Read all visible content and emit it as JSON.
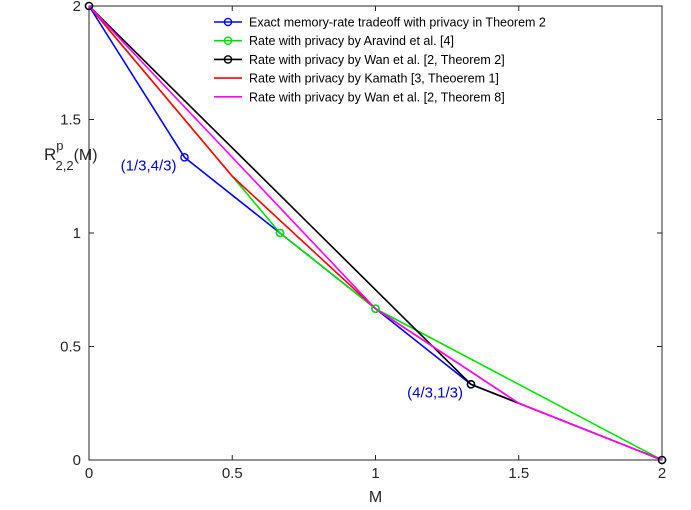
{
  "chart_data": {
    "type": "line",
    "xlabel": "M",
    "ylabel": {
      "main": "R",
      "superscript": "p",
      "subscript": "2,2",
      "suffix": "(M)"
    },
    "xlim": [
      0,
      2
    ],
    "ylim": [
      0,
      2
    ],
    "x_ticks": [
      {
        "value": 0,
        "label": "0"
      },
      {
        "value": 0.5,
        "label": "0.5"
      },
      {
        "value": 1,
        "label": "1"
      },
      {
        "value": 1.5,
        "label": "1.5"
      },
      {
        "value": 2,
        "label": "2"
      }
    ],
    "y_ticks": [
      {
        "value": 0,
        "label": "0"
      },
      {
        "value": 0.5,
        "label": "0.5"
      },
      {
        "value": 1,
        "label": "1"
      },
      {
        "value": 1.5,
        "label": "1.5"
      },
      {
        "value": 2,
        "label": "2"
      }
    ],
    "grid": false,
    "legend_position": "top-right",
    "series": [
      {
        "name": "Exact memory-rate tradeoff with privacy in Theorem 2",
        "color": "#0000ff",
        "points": [
          [
            0,
            2
          ],
          [
            0.3333,
            1.3333
          ],
          [
            0.6667,
            1
          ],
          [
            1,
            0.6667
          ],
          [
            1.3333,
            0.3333
          ],
          [
            2,
            0
          ]
        ],
        "markers": [
          [
            0,
            2
          ],
          [
            0.3333,
            1.3333
          ],
          [
            0.6667,
            1
          ],
          [
            1,
            0.6667
          ],
          [
            1.3333,
            0.3333
          ],
          [
            2,
            0
          ]
        ]
      },
      {
        "name": "Rate with privacy by Aravind et al. [4]",
        "color": "#00e000",
        "points": [
          [
            0,
            2
          ],
          [
            0.5,
            1.25
          ],
          [
            0.6667,
            1
          ],
          [
            1,
            0.6667
          ],
          [
            2,
            0
          ]
        ],
        "markers": [
          [
            0.6667,
            1
          ],
          [
            1,
            0.6667
          ],
          [
            2,
            0
          ]
        ]
      },
      {
        "name": "Rate with privacy by Wan et al. [2, Theorem 2]",
        "color": "#000000",
        "points": [
          [
            0,
            2
          ],
          [
            1.3333,
            0.3333
          ],
          [
            1.5,
            0.25
          ],
          [
            2,
            0
          ]
        ],
        "markers": [
          [
            0,
            2
          ],
          [
            1.3333,
            0.3333
          ],
          [
            2,
            0
          ]
        ]
      },
      {
        "name": "Rate with privacy by Kamath [3, Theoerem 1]",
        "color": "#ff0000",
        "points": [
          [
            0,
            2
          ],
          [
            0.5,
            1.25
          ],
          [
            1,
            0.6667
          ],
          [
            1.5,
            0.25
          ],
          [
            2,
            0
          ]
        ],
        "markers": []
      },
      {
        "name": "Rate with privacy by Wan et al. [2, Theorem 8]",
        "color": "#ff00ff",
        "points": [
          [
            0,
            2
          ],
          [
            1,
            0.6667
          ],
          [
            1.5,
            0.25
          ],
          [
            2,
            0
          ]
        ],
        "markers": []
      }
    ],
    "annotations": [
      {
        "text": "(1/3,4/3)",
        "x": 0.3333,
        "y": 1.3333,
        "color": "#0000cc",
        "anchor": "left-of-point"
      },
      {
        "text": "(4/3,1/3)",
        "x": 1.3333,
        "y": 0.3333,
        "color": "#0000cc",
        "anchor": "left-of-point"
      }
    ]
  }
}
